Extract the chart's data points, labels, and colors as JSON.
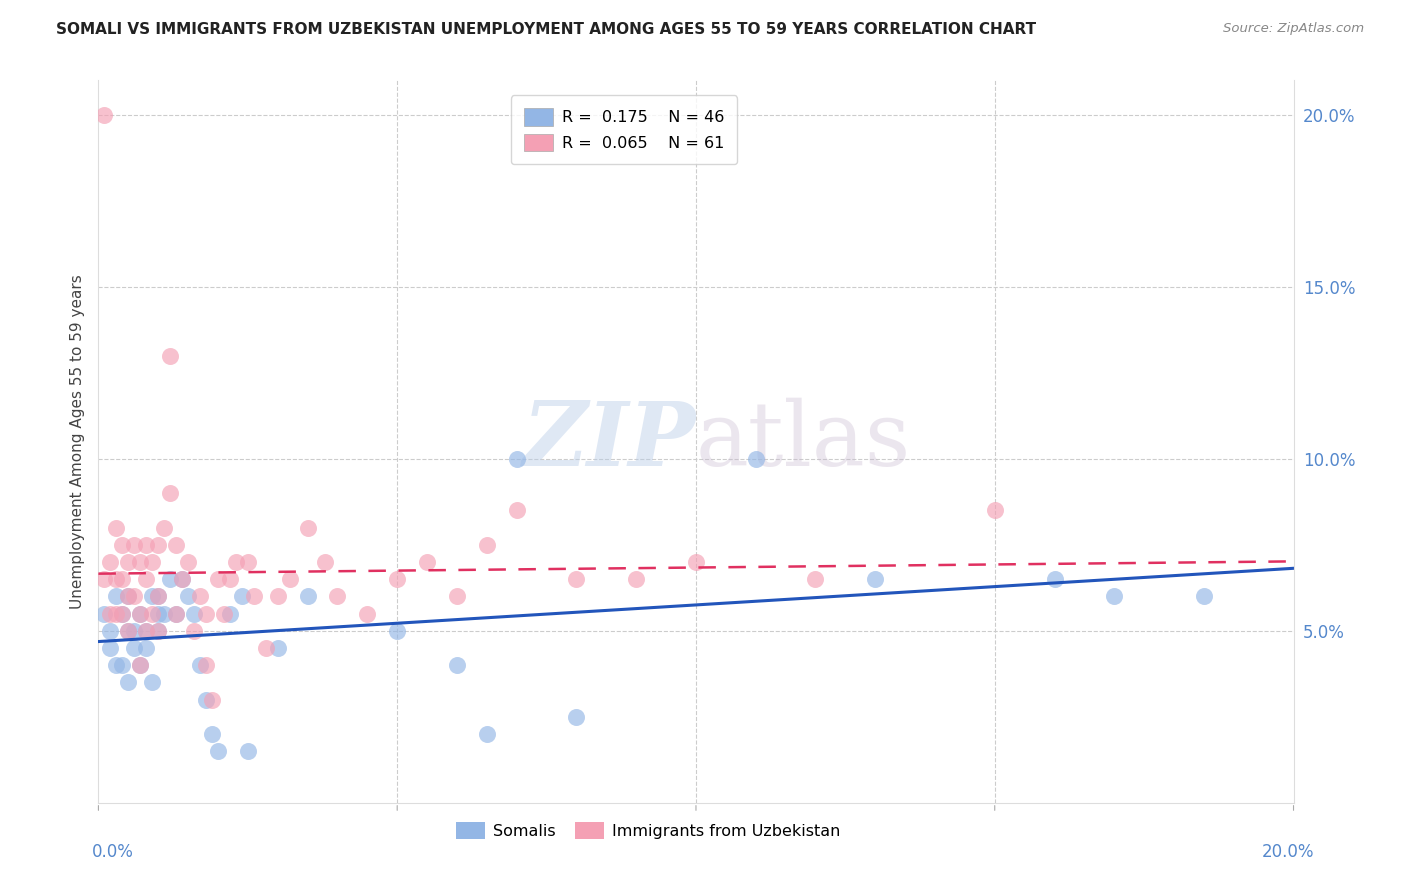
{
  "title": "SOMALI VS IMMIGRANTS FROM UZBEKISTAN UNEMPLOYMENT AMONG AGES 55 TO 59 YEARS CORRELATION CHART",
  "source": "Source: ZipAtlas.com",
  "ylabel": "Unemployment Among Ages 55 to 59 years",
  "legend_labels": [
    "Somalis",
    "Immigrants from Uzbekistan"
  ],
  "R_somali": 0.175,
  "N_somali": 46,
  "R_uzbek": 0.065,
  "N_uzbek": 61,
  "color_somali": "#93b6e5",
  "color_uzbek": "#f4a0b4",
  "color_line_somali": "#2255bb",
  "color_line_uzbek": "#e03060",
  "xlim": [
    0.0,
    0.2
  ],
  "ylim": [
    0.0,
    0.21
  ],
  "xticks": [
    0.0,
    0.05,
    0.1,
    0.15,
    0.2
  ],
  "yticks": [
    0.05,
    0.1,
    0.15,
    0.2
  ],
  "xticklabels_bottom_left": "0.0%",
  "xticklabels_bottom_right": "20.0%",
  "yticklabels": [
    "5.0%",
    "10.0%",
    "15.0%",
    "20.0%"
  ],
  "somali_x": [
    0.001,
    0.002,
    0.002,
    0.003,
    0.003,
    0.004,
    0.004,
    0.005,
    0.005,
    0.005,
    0.006,
    0.006,
    0.007,
    0.007,
    0.008,
    0.008,
    0.009,
    0.009,
    0.01,
    0.01,
    0.01,
    0.011,
    0.012,
    0.013,
    0.014,
    0.015,
    0.016,
    0.017,
    0.018,
    0.019,
    0.02,
    0.022,
    0.024,
    0.025,
    0.03,
    0.035,
    0.05,
    0.06,
    0.065,
    0.07,
    0.08,
    0.11,
    0.13,
    0.16,
    0.17,
    0.185
  ],
  "somali_y": [
    0.055,
    0.05,
    0.045,
    0.06,
    0.04,
    0.055,
    0.04,
    0.05,
    0.06,
    0.035,
    0.05,
    0.045,
    0.055,
    0.04,
    0.05,
    0.045,
    0.06,
    0.035,
    0.055,
    0.05,
    0.06,
    0.055,
    0.065,
    0.055,
    0.065,
    0.06,
    0.055,
    0.04,
    0.03,
    0.02,
    0.015,
    0.055,
    0.06,
    0.015,
    0.045,
    0.06,
    0.05,
    0.04,
    0.02,
    0.1,
    0.025,
    0.1,
    0.065,
    0.065,
    0.06,
    0.06
  ],
  "uzbek_x": [
    0.001,
    0.001,
    0.002,
    0.002,
    0.003,
    0.003,
    0.003,
    0.004,
    0.004,
    0.004,
    0.005,
    0.005,
    0.005,
    0.006,
    0.006,
    0.007,
    0.007,
    0.007,
    0.008,
    0.008,
    0.008,
    0.009,
    0.009,
    0.01,
    0.01,
    0.01,
    0.011,
    0.012,
    0.012,
    0.013,
    0.013,
    0.014,
    0.015,
    0.016,
    0.017,
    0.018,
    0.018,
    0.019,
    0.02,
    0.021,
    0.022,
    0.023,
    0.025,
    0.026,
    0.028,
    0.03,
    0.032,
    0.035,
    0.038,
    0.04,
    0.045,
    0.05,
    0.055,
    0.06,
    0.065,
    0.07,
    0.08,
    0.09,
    0.1,
    0.12,
    0.15
  ],
  "uzbek_y": [
    0.2,
    0.065,
    0.07,
    0.055,
    0.08,
    0.065,
    0.055,
    0.075,
    0.065,
    0.055,
    0.07,
    0.06,
    0.05,
    0.075,
    0.06,
    0.07,
    0.055,
    0.04,
    0.075,
    0.065,
    0.05,
    0.07,
    0.055,
    0.075,
    0.06,
    0.05,
    0.08,
    0.13,
    0.09,
    0.075,
    0.055,
    0.065,
    0.07,
    0.05,
    0.06,
    0.055,
    0.04,
    0.03,
    0.065,
    0.055,
    0.065,
    0.07,
    0.07,
    0.06,
    0.045,
    0.06,
    0.065,
    0.08,
    0.07,
    0.06,
    0.055,
    0.065,
    0.07,
    0.06,
    0.075,
    0.085,
    0.065,
    0.065,
    0.07,
    0.065,
    0.085
  ]
}
